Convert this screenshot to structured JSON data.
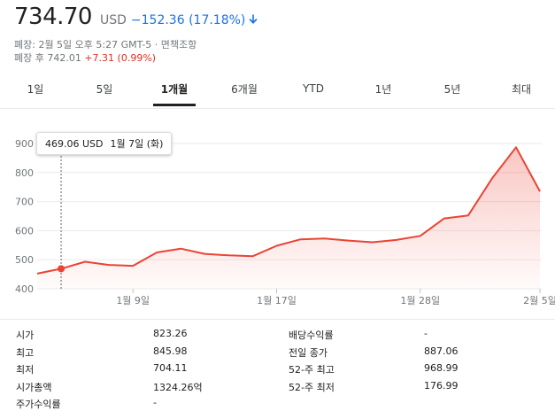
{
  "quote": {
    "price": "734.70",
    "currency": "USD",
    "change": "−152.36 (17.18%)",
    "direction_icon": "arrow-down-icon",
    "close_line": "폐장: 2월 5일 오후 5:27 GMT-5 · 면책조항",
    "after_label": "폐장 후 742.01",
    "after_change": "+7.31 (0.99%)"
  },
  "tabs": [
    {
      "label": "1일",
      "active": false
    },
    {
      "label": "5일",
      "active": false
    },
    {
      "label": "1개월",
      "active": true
    },
    {
      "label": "6개월",
      "active": false
    },
    {
      "label": "YTD",
      "active": false
    },
    {
      "label": "1년",
      "active": false
    },
    {
      "label": "5년",
      "active": false
    },
    {
      "label": "최대",
      "active": false
    }
  ],
  "tooltip": {
    "value": "469.06 USD",
    "date": "1월 7일 (화)"
  },
  "colors": {
    "line": "#ea4335",
    "down": "#1a73e8",
    "up": "#d93025"
  },
  "chart_data": {
    "type": "area",
    "y_ticks": [
      "900",
      "800",
      "700",
      "600",
      "500",
      "400"
    ],
    "x_ticks": [
      "1월 9일",
      "1월 17일",
      "1월 28일",
      "2월 5일"
    ],
    "ylim": [
      400,
      900
    ],
    "series": [
      {
        "values": [
          452,
          469,
          493,
          482,
          479,
          525,
          538,
          520,
          515,
          512,
          548,
          570,
          573,
          566,
          560,
          568,
          582,
          642,
          652,
          780,
          887,
          735
        ]
      }
    ],
    "hover_index": 1,
    "grid": true
  },
  "stats": {
    "left": [
      {
        "label": "시가",
        "value": "823.26"
      },
      {
        "label": "최고",
        "value": "845.98"
      },
      {
        "label": "최저",
        "value": "704.11"
      },
      {
        "label": "시가총액",
        "value": "1324.26억"
      },
      {
        "label": "주가수익률",
        "value": "-"
      }
    ],
    "right": [
      {
        "label": "배당수익률",
        "value": "-"
      },
      {
        "label": "전일 종가",
        "value": "887.06"
      },
      {
        "label": "52-주 최고",
        "value": "968.99"
      },
      {
        "label": "52-주 최저",
        "value": "176.99"
      }
    ]
  }
}
